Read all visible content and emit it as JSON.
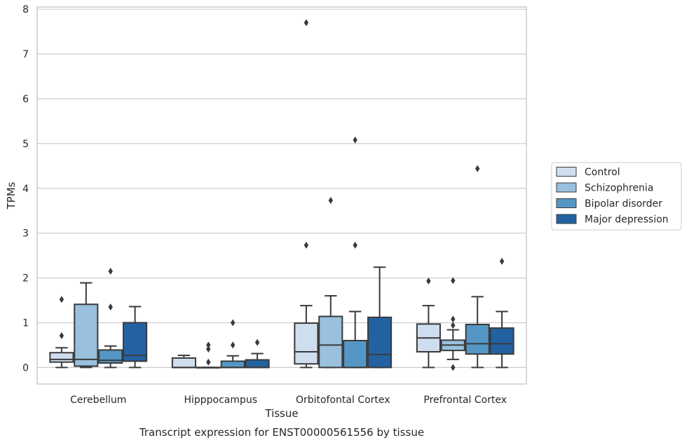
{
  "chart_data": {
    "type": "box",
    "title": "",
    "caption": "Transcript expression for ENST00000561556 by tissue",
    "xlabel": "Tissue",
    "ylabel": "TPMs",
    "ylim": [
      -0.37,
      8.05
    ],
    "yticks": [
      0,
      1,
      2,
      3,
      4,
      5,
      6,
      7,
      8
    ],
    "grid": "horizontal",
    "legend_position": "right",
    "categories": [
      "Cerebellum",
      "Hipppocampus",
      "Orbitofontal Cortex",
      "Prefrontal Cortex"
    ],
    "colors": {
      "Control": "#cfdeef",
      "Schizophrenia": "#99c1de",
      "Bipolar disorder": "#5497c6",
      "Major depression": "#2262a3",
      "edge": "#3a3a3a",
      "grid": "#cccccc"
    },
    "series": [
      {
        "name": "Control",
        "boxes": [
          {
            "q1": 0.12,
            "median": 0.18,
            "q3": 0.33,
            "whislo": 0.0,
            "whishi": 0.44,
            "fliers": [
              0.71,
              1.52
            ]
          },
          {
            "q1": 0.0,
            "median": 0.0,
            "q3": 0.21,
            "whislo": 0.0,
            "whishi": 0.27,
            "fliers": []
          },
          {
            "q1": 0.08,
            "median": 0.35,
            "q3": 0.99,
            "whislo": 0.0,
            "whishi": 1.38,
            "fliers": [
              2.73,
              7.7
            ]
          },
          {
            "q1": 0.35,
            "median": 0.66,
            "q3": 0.97,
            "whislo": 0.0,
            "whishi": 1.38,
            "fliers": [
              1.93
            ]
          }
        ]
      },
      {
        "name": "Schizophrenia",
        "boxes": [
          {
            "q1": 0.03,
            "median": 0.18,
            "q3": 1.41,
            "whislo": 0.0,
            "whishi": 1.89,
            "fliers": []
          },
          {
            "q1": 0.0,
            "median": 0.0,
            "q3": 0.0,
            "whislo": 0.0,
            "whishi": 0.0,
            "fliers": [
              0.12,
              0.41,
              0.5
            ]
          },
          {
            "q1": 0.0,
            "median": 0.5,
            "q3": 1.14,
            "whislo": 0.0,
            "whishi": 1.6,
            "fliers": [
              3.73
            ]
          },
          {
            "q1": 0.38,
            "median": 0.5,
            "q3": 0.61,
            "whislo": 0.18,
            "whishi": 0.84,
            "fliers": [
              0.0,
              0.94,
              1.08,
              1.94
            ]
          }
        ]
      },
      {
        "name": "Bipolar disorder",
        "boxes": [
          {
            "q1": 0.1,
            "median": 0.16,
            "q3": 0.39,
            "whislo": 0.0,
            "whishi": 0.48,
            "fliers": [
              1.35,
              2.15
            ]
          },
          {
            "q1": 0.0,
            "median": 0.0,
            "q3": 0.14,
            "whislo": 0.0,
            "whishi": 0.26,
            "fliers": [
              0.5,
              1.0
            ]
          },
          {
            "q1": 0.0,
            "median": 0.0,
            "q3": 0.6,
            "whislo": 0.0,
            "whishi": 1.25,
            "fliers": [
              2.73,
              5.08
            ]
          },
          {
            "q1": 0.3,
            "median": 0.53,
            "q3": 0.96,
            "whislo": 0.0,
            "whishi": 1.58,
            "fliers": [
              4.44
            ]
          }
        ]
      },
      {
        "name": "Major depression",
        "boxes": [
          {
            "q1": 0.14,
            "median": 0.27,
            "q3": 1.0,
            "whislo": 0.0,
            "whishi": 1.36,
            "fliers": []
          },
          {
            "q1": 0.0,
            "median": 0.0,
            "q3": 0.17,
            "whislo": 0.0,
            "whishi": 0.31,
            "fliers": [
              0.56
            ]
          },
          {
            "q1": 0.0,
            "median": 0.29,
            "q3": 1.12,
            "whislo": 0.0,
            "whishi": 2.24,
            "fliers": []
          },
          {
            "q1": 0.3,
            "median": 0.53,
            "q3": 0.88,
            "whislo": 0.0,
            "whishi": 1.25,
            "fliers": [
              2.37
            ]
          }
        ]
      }
    ]
  }
}
